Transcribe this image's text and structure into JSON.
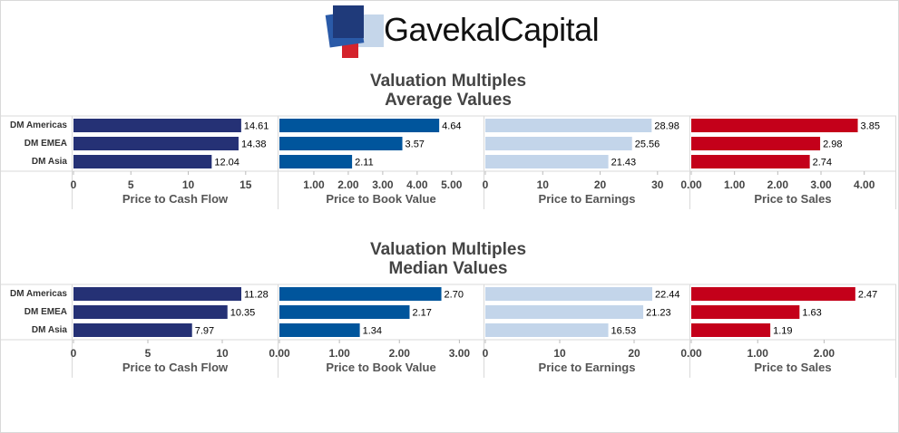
{
  "brand": {
    "name_part1": "Gavekal",
    "name_part2": "Capital",
    "colors": {
      "navy": "#1f3a7a",
      "blue": "#2a5aa8",
      "light": "#c5d6ea",
      "red": "#d4232c"
    }
  },
  "colors": {
    "cash_flow": "#253175",
    "book_value": "#00559c",
    "earnings": "#c3d5ea",
    "sales": "#c4001a"
  },
  "chart_data": [
    {
      "type": "bar",
      "title_line1": "Valuation Multiples",
      "title_line2": "Average Values",
      "categories": [
        "DM Americas",
        "DM EMEA",
        "DM Asia"
      ],
      "panels": [
        {
          "xlabel": "Price to Cash Flow",
          "values": [
            14.61,
            14.38,
            12.04
          ],
          "labels": [
            "14.61",
            "14.38",
            "12.04"
          ],
          "xlim": [
            0,
            16.2
          ],
          "ticks": [
            0,
            5,
            10,
            15
          ],
          "tick_labels": [
            "0",
            "5",
            "10",
            "15"
          ]
        },
        {
          "xlabel": "Price to Book Value",
          "values": [
            4.64,
            3.57,
            2.11
          ],
          "labels": [
            "4.64",
            "3.57",
            "2.11"
          ],
          "xlim": [
            0,
            5.4
          ],
          "ticks": [
            1,
            2,
            3,
            4,
            5
          ],
          "tick_labels": [
            "1.00",
            "2.00",
            "3.00",
            "4.00",
            "5.00"
          ]
        },
        {
          "xlabel": "Price to Earnings",
          "values": [
            28.98,
            25.56,
            21.43
          ],
          "labels": [
            "28.98",
            "25.56",
            "21.43"
          ],
          "xlim": [
            0,
            32.4
          ],
          "ticks": [
            0,
            10,
            20,
            30
          ],
          "tick_labels": [
            "0",
            "10",
            "20",
            "30"
          ]
        },
        {
          "xlabel": "Price to Sales",
          "values": [
            3.85,
            2.98,
            2.74
          ],
          "labels": [
            "3.85",
            "2.98",
            "2.74"
          ],
          "xlim": [
            0,
            4.3
          ],
          "ticks": [
            0,
            1,
            2,
            3,
            4
          ],
          "tick_labels": [
            "0.00",
            "1.00",
            "2.00",
            "3.00",
            "4.00"
          ]
        }
      ]
    },
    {
      "type": "bar",
      "title_line1": "Valuation Multiples",
      "title_line2": "Median Values",
      "categories": [
        "DM Americas",
        "DM EMEA",
        "DM Asia"
      ],
      "panels": [
        {
          "xlabel": "Price to Cash Flow",
          "values": [
            11.28,
            10.35,
            7.97
          ],
          "labels": [
            "11.28",
            "10.35",
            "7.97"
          ],
          "xlim": [
            0,
            12.5
          ],
          "ticks": [
            0,
            5,
            10
          ],
          "tick_labels": [
            "0",
            "5",
            "10"
          ]
        },
        {
          "xlabel": "Price to Book Value",
          "values": [
            2.7,
            2.17,
            1.34
          ],
          "labels": [
            "2.70",
            "2.17",
            "1.34"
          ],
          "xlim": [
            0,
            3.1
          ],
          "ticks": [
            0,
            1,
            2,
            3
          ],
          "tick_labels": [
            "0.00",
            "1.00",
            "2.00",
            "3.00"
          ]
        },
        {
          "xlabel": "Price to Earnings",
          "values": [
            22.44,
            21.23,
            16.53
          ],
          "labels": [
            "22.44",
            "21.23",
            "16.53"
          ],
          "xlim": [
            0,
            25
          ],
          "ticks": [
            0,
            10,
            20
          ],
          "tick_labels": [
            "0",
            "10",
            "20"
          ]
        },
        {
          "xlabel": "Price to Sales",
          "values": [
            2.47,
            1.63,
            1.19
          ],
          "labels": [
            "2.47",
            "1.63",
            "1.19"
          ],
          "xlim": [
            0,
            2.8
          ],
          "ticks": [
            0,
            1,
            2
          ],
          "tick_labels": [
            "0.00",
            "1.00",
            "2.00"
          ]
        }
      ]
    }
  ]
}
